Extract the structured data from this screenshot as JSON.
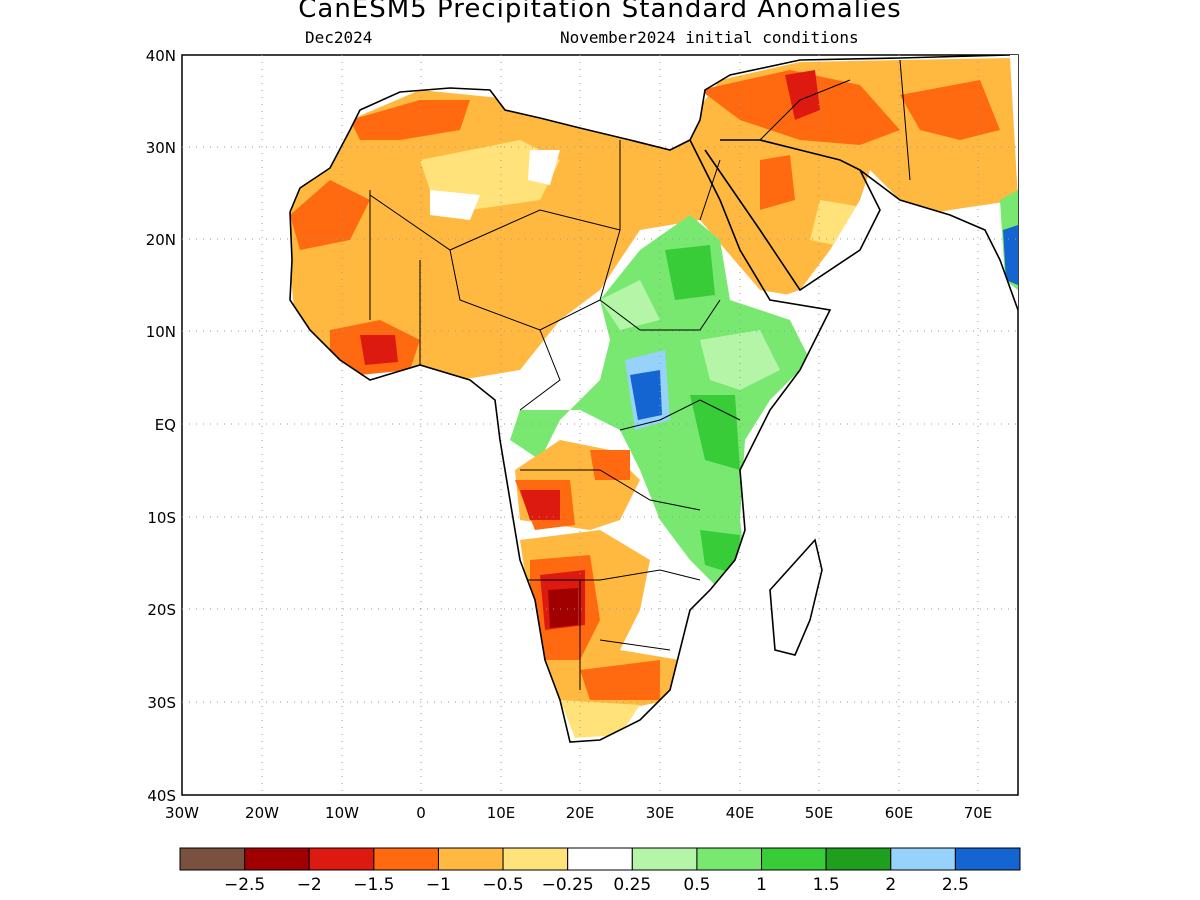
{
  "title": "CanESM5 Precipitation Standard Anomalies",
  "subtitle_left": "Dec2024",
  "subtitle_right": "November2024 initial conditions",
  "lat_labels": [
    "40N",
    "30N",
    "20N",
    "10N",
    "EQ",
    "10S",
    "20S",
    "30S",
    "40S"
  ],
  "lon_labels": [
    "30W",
    "20W",
    "10W",
    "0",
    "10E",
    "20E",
    "30E",
    "40E",
    "50E",
    "60E",
    "70E"
  ],
  "colorbar": {
    "colors": [
      "#7a5040",
      "#a00000",
      "#dd1a10",
      "#ff6a10",
      "#ffb940",
      "#ffe37a",
      "#ffffff",
      "#b4f5a8",
      "#78e870",
      "#38cc38",
      "#1ea01e",
      "#96d2fa",
      "#1464d2"
    ],
    "labels": [
      "−2.5",
      "−2",
      "−1.5",
      "−1",
      "−0.5",
      "−0.25",
      "0.25",
      "0.5",
      "1",
      "1.5",
      "2",
      "2.5"
    ]
  },
  "colors": {
    "dry_strong": "#a00000",
    "dry": "#ff6a10",
    "dry_weak": "#ffb940",
    "wet": "#78e870",
    "wet_strong": "#1464d2"
  }
}
